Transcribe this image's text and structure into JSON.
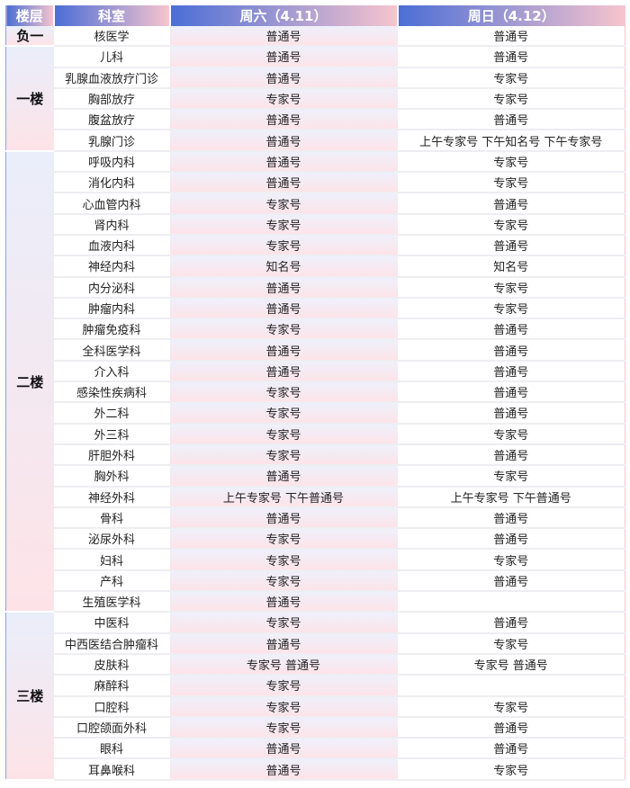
{
  "header": {
    "floor": "楼层",
    "dept": "科室",
    "sat": "周六（4.11）",
    "sun": "周日（4.12）"
  },
  "floors": [
    {
      "name": "负一",
      "rows": [
        {
          "dept": "核医学",
          "sat": "普通号",
          "sun": "普通号"
        }
      ]
    },
    {
      "name": "一楼",
      "rows": [
        {
          "dept": "儿科",
          "sat": "普通号",
          "sun": "普通号"
        },
        {
          "dept": "乳腺血液放疗门诊",
          "sat": "普通号",
          "sun": "专家号"
        },
        {
          "dept": "胸部放疗",
          "sat": "专家号",
          "sun": "专家号"
        },
        {
          "dept": "腹盆放疗",
          "sat": "普通号",
          "sun": "普通号"
        },
        {
          "dept": "乳腺门诊",
          "sat": "普通号",
          "sun": "上午专家号 下午知名号 下午专家号"
        }
      ]
    },
    {
      "name": "二楼",
      "rows": [
        {
          "dept": "呼吸内科",
          "sat": "普通号",
          "sun": "专家号"
        },
        {
          "dept": "消化内科",
          "sat": "普通号",
          "sun": "专家号"
        },
        {
          "dept": "心血管内科",
          "sat": "专家号",
          "sun": "普通号"
        },
        {
          "dept": "肾内科",
          "sat": "专家号",
          "sun": "专家号"
        },
        {
          "dept": "血液内科",
          "sat": "专家号",
          "sun": "普通号"
        },
        {
          "dept": "神经内科",
          "sat": "知名号",
          "sun": "知名号"
        },
        {
          "dept": "内分泌科",
          "sat": "普通号",
          "sun": "专家号"
        },
        {
          "dept": "肿瘤内科",
          "sat": "普通号",
          "sun": "专家号"
        },
        {
          "dept": "肿瘤免疫科",
          "sat": "专家号",
          "sun": "普通号"
        },
        {
          "dept": "全科医学科",
          "sat": "普通号",
          "sun": "普通号"
        },
        {
          "dept": "介入科",
          "sat": "普通号",
          "sun": "普通号"
        },
        {
          "dept": "感染性疾病科",
          "sat": "专家号",
          "sun": "普通号"
        },
        {
          "dept": "外二科",
          "sat": "专家号",
          "sun": "普通号"
        },
        {
          "dept": "外三科",
          "sat": "专家号",
          "sun": "专家号"
        },
        {
          "dept": "肝胆外科",
          "sat": "专家号",
          "sun": "普通号"
        },
        {
          "dept": "胸外科",
          "sat": "普通号",
          "sun": "专家号"
        },
        {
          "dept": "神经外科",
          "sat": "上午专家号 下午普通号",
          "sun": "上午专家号 下午普通号"
        },
        {
          "dept": "骨科",
          "sat": "普通号",
          "sun": "普通号"
        },
        {
          "dept": "泌尿外科",
          "sat": "专家号",
          "sun": "普通号"
        },
        {
          "dept": "妇科",
          "sat": "专家号",
          "sun": "专家号"
        },
        {
          "dept": "产科",
          "sat": "专家号",
          "sun": "普通号"
        },
        {
          "dept": "生殖医学科",
          "sat": "普通号",
          "sun": ""
        }
      ]
    },
    {
      "name": "三楼",
      "rows": [
        {
          "dept": "中医科",
          "sat": "专家号",
          "sun": "普通号"
        },
        {
          "dept": "中西医结合肿瘤科",
          "sat": "普通号",
          "sun": "专家号"
        },
        {
          "dept": "皮肤科",
          "sat": "专家号 普通号",
          "sun": "专家号 普通号"
        },
        {
          "dept": "麻醉科",
          "sat": "专家号",
          "sun": ""
        },
        {
          "dept": "口腔科",
          "sat": "专家号",
          "sun": "专家号"
        },
        {
          "dept": "口腔颌面外科",
          "sat": "专家号",
          "sun": "普通号"
        },
        {
          "dept": "眼科",
          "sat": "普通号",
          "sun": "普通号"
        },
        {
          "dept": "耳鼻喉科",
          "sat": "普通号",
          "sun": "专家号"
        }
      ]
    }
  ]
}
